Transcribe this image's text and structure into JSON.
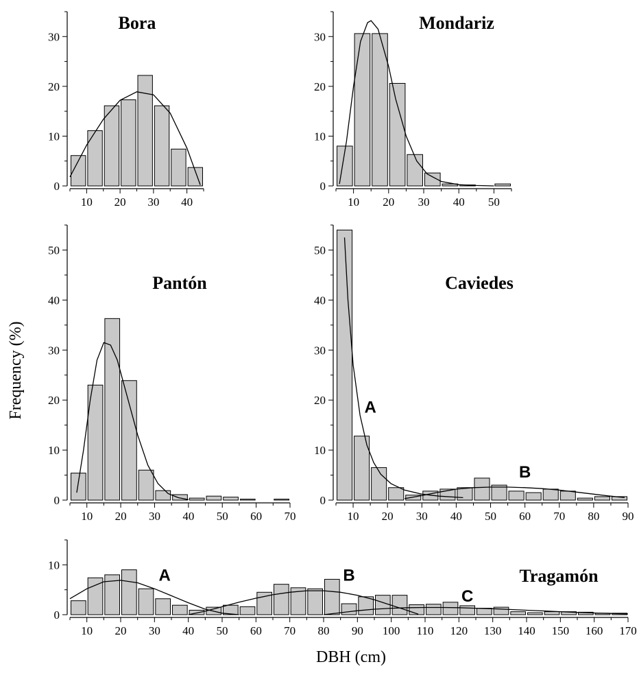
{
  "figure": {
    "ylabel": "Frequency (%)",
    "xlabel": "DBH (cm)"
  },
  "colors": {
    "bar_fill": "#c8c8c8",
    "bar_stroke": "#000000",
    "curve": "#000000"
  },
  "chart_data": [
    {
      "type": "bar",
      "title": "Bora",
      "bin_width": 5,
      "x": [
        7.5,
        12.5,
        17.5,
        22.5,
        27.5,
        32.5,
        37.5,
        42.5
      ],
      "values": [
        6.1,
        11.1,
        16.1,
        17.3,
        22.2,
        16.1,
        7.4,
        3.7
      ],
      "xlim": [
        5,
        45
      ],
      "ylim": [
        0,
        35
      ],
      "xticks": [
        10,
        20,
        30,
        40
      ],
      "yticks": [
        0,
        10,
        20,
        30
      ],
      "fit_curves": [
        {
          "label": "",
          "points": [
            [
              5,
              1.8
            ],
            [
              10,
              8.2
            ],
            [
              15,
              13.4
            ],
            [
              20,
              17.2
            ],
            [
              25,
              18.9
            ],
            [
              30,
              18.3
            ],
            [
              35,
              14.6
            ],
            [
              40,
              7.6
            ],
            [
              44,
              0.2
            ]
          ]
        }
      ]
    },
    {
      "type": "bar",
      "title": "Mondariz",
      "bin_width": 5,
      "x": [
        7.5,
        12.5,
        17.5,
        22.5,
        27.5,
        32.5,
        37.5,
        42.5,
        47.5,
        52.5
      ],
      "values": [
        8.0,
        30.6,
        30.6,
        20.6,
        6.3,
        2.6,
        0.4,
        0.2,
        0,
        0.4
      ],
      "xlim": [
        5,
        55
      ],
      "ylim": [
        0,
        35
      ],
      "xticks": [
        10,
        20,
        30,
        40,
        50
      ],
      "yticks": [
        0,
        10,
        20,
        30
      ],
      "fit_curves": [
        {
          "label": "",
          "points": [
            [
              6,
              0.4
            ],
            [
              8,
              9
            ],
            [
              10,
              20
            ],
            [
              12,
              29
            ],
            [
              14,
              32.8
            ],
            [
              15,
              33.2
            ],
            [
              17,
              31.5
            ],
            [
              20,
              24
            ],
            [
              22,
              17.5
            ],
            [
              25,
              10
            ],
            [
              28,
              5
            ],
            [
              31,
              2.4
            ],
            [
              35,
              0.9
            ],
            [
              40,
              0.25
            ],
            [
              45,
              0.08
            ],
            [
              50,
              0
            ]
          ]
        }
      ]
    },
    {
      "type": "bar",
      "title": "Pantón",
      "bin_width": 5,
      "x": [
        7.5,
        12.5,
        17.5,
        22.5,
        27.5,
        32.5,
        37.5,
        42.5,
        47.5,
        52.5,
        57.5,
        62.5,
        67.5
      ],
      "values": [
        5.4,
        23.0,
        36.3,
        23.9,
        6.0,
        1.9,
        1.1,
        0.4,
        0.8,
        0.6,
        0.2,
        0,
        0.2
      ],
      "xlim": [
        5,
        70
      ],
      "ylim": [
        0,
        55
      ],
      "xticks": [
        10,
        20,
        30,
        40,
        50,
        60,
        70
      ],
      "yticks": [
        0,
        10,
        20,
        30,
        40,
        50
      ],
      "fit_curves": [
        {
          "label": "",
          "points": [
            [
              7,
              1.5
            ],
            [
              9,
              10
            ],
            [
              11,
              20
            ],
            [
              13,
              28
            ],
            [
              15,
              31.5
            ],
            [
              17,
              31
            ],
            [
              19,
              28
            ],
            [
              21,
              23
            ],
            [
              23,
              18
            ],
            [
              25,
              13
            ],
            [
              28,
              7
            ],
            [
              31,
              3.3
            ],
            [
              34,
              1.3
            ],
            [
              37,
              0.5
            ],
            [
              40,
              0.1
            ]
          ]
        }
      ]
    },
    {
      "type": "bar",
      "title": "Caviedes",
      "bin_width": 5,
      "x": [
        7.5,
        12.5,
        17.5,
        22.5,
        27.5,
        32.5,
        37.5,
        42.5,
        47.5,
        52.5,
        57.5,
        62.5,
        67.5,
        72.5,
        77.5,
        82.5,
        87.5
      ],
      "values": [
        54.0,
        12.8,
        6.5,
        2.5,
        1.0,
        1.8,
        2.2,
        2.5,
        4.4,
        3.0,
        1.8,
        1.5,
        2.2,
        1.8,
        0.4,
        0.7,
        0.7
      ],
      "xlim": [
        5,
        90
      ],
      "ylim": [
        0,
        55
      ],
      "xticks": [
        10,
        20,
        30,
        40,
        50,
        60,
        70,
        80,
        90
      ],
      "yticks": [
        0,
        10,
        20,
        30,
        40,
        50
      ],
      "fit_curves": [
        {
          "label": "A",
          "label_pos": [
            15,
            17.5
          ],
          "points": [
            [
              7.5,
              52.5
            ],
            [
              8.5,
              40
            ],
            [
              10,
              27
            ],
            [
              12,
              17
            ],
            [
              14,
              11
            ],
            [
              16,
              7.5
            ],
            [
              18,
              5.2
            ],
            [
              21,
              3.3
            ],
            [
              25,
              2
            ],
            [
              30,
              1.2
            ],
            [
              35,
              0.8
            ],
            [
              42,
              0.5
            ]
          ]
        },
        {
          "label": "B",
          "label_pos": [
            60,
            4.5
          ],
          "points": [
            [
              25,
              0.3
            ],
            [
              30,
              0.9
            ],
            [
              35,
              1.6
            ],
            [
              40,
              2.2
            ],
            [
              45,
              2.5
            ],
            [
              50,
              2.6
            ],
            [
              55,
              2.6
            ],
            [
              60,
              2.5
            ],
            [
              65,
              2.3
            ],
            [
              70,
              2.0
            ],
            [
              75,
              1.6
            ],
            [
              80,
              1.2
            ],
            [
              85,
              0.8
            ],
            [
              89,
              0.5
            ]
          ]
        }
      ]
    },
    {
      "type": "bar",
      "title": "Tragamón",
      "bin_width": 5,
      "x": [
        7.5,
        12.5,
        17.5,
        22.5,
        27.5,
        32.5,
        37.5,
        42.5,
        47.5,
        52.5,
        57.5,
        62.5,
        67.5,
        72.5,
        77.5,
        82.5,
        87.5,
        92.5,
        97.5,
        102.5,
        107.5,
        112.5,
        117.5,
        122.5,
        127.5,
        132.5,
        137.5,
        142.5,
        147.5,
        152.5,
        157.5,
        162.5,
        167.5
      ],
      "values": [
        2.8,
        7.4,
        8.0,
        9.0,
        5.2,
        3.2,
        1.9,
        0.9,
        1.5,
        1.9,
        1.6,
        4.5,
        6.1,
        5.4,
        5.2,
        7.1,
        2.2,
        3.6,
        3.9,
        3.9,
        2.0,
        2.1,
        2.5,
        1.8,
        1.3,
        1.5,
        0.6,
        0.4,
        0.6,
        0.6,
        0.5,
        0.3,
        0.3
      ],
      "xlim": [
        5,
        170
      ],
      "ylim": [
        0,
        15
      ],
      "xticks": [
        10,
        20,
        30,
        40,
        50,
        60,
        70,
        80,
        90,
        100,
        110,
        120,
        130,
        140,
        150,
        160,
        170
      ],
      "yticks": [
        0,
        10
      ],
      "fit_curves": [
        {
          "label": "A",
          "label_pos": [
            33,
            6.8
          ],
          "points": [
            [
              5,
              3.2
            ],
            [
              10,
              5.2
            ],
            [
              15,
              6.6
            ],
            [
              20,
              6.9
            ],
            [
              25,
              6.4
            ],
            [
              30,
              5.2
            ],
            [
              35,
              3.8
            ],
            [
              40,
              2.4
            ],
            [
              45,
              1.1
            ],
            [
              50,
              0.3
            ],
            [
              55,
              0
            ]
          ]
        },
        {
          "label": "B",
          "label_pos": [
            87.5,
            6.8
          ],
          "points": [
            [
              40,
              0
            ],
            [
              45,
              0.7
            ],
            [
              50,
              1.6
            ],
            [
              55,
              2.5
            ],
            [
              60,
              3.3
            ],
            [
              65,
              4.0
            ],
            [
              70,
              4.5
            ],
            [
              75,
              4.8
            ],
            [
              80,
              4.8
            ],
            [
              85,
              4.5
            ],
            [
              90,
              3.9
            ],
            [
              95,
              3.0
            ],
            [
              100,
              1.9
            ],
            [
              105,
              0.8
            ],
            [
              108,
              0.1
            ]
          ]
        },
        {
          "label": "C",
          "label_pos": [
            122.5,
            2.6
          ],
          "points": [
            [
              80,
              0
            ],
            [
              85,
              0.4
            ],
            [
              90,
              0.8
            ],
            [
              95,
              1.1
            ],
            [
              100,
              1.3
            ],
            [
              105,
              1.4
            ],
            [
              110,
              1.45
            ],
            [
              115,
              1.45
            ],
            [
              120,
              1.4
            ],
            [
              125,
              1.3
            ],
            [
              130,
              1.2
            ],
            [
              135,
              1.05
            ],
            [
              140,
              0.9
            ],
            [
              145,
              0.75
            ],
            [
              150,
              0.6
            ],
            [
              155,
              0.45
            ],
            [
              160,
              0.35
            ],
            [
              165,
              0.25
            ],
            [
              170,
              0.15
            ]
          ]
        }
      ]
    }
  ]
}
